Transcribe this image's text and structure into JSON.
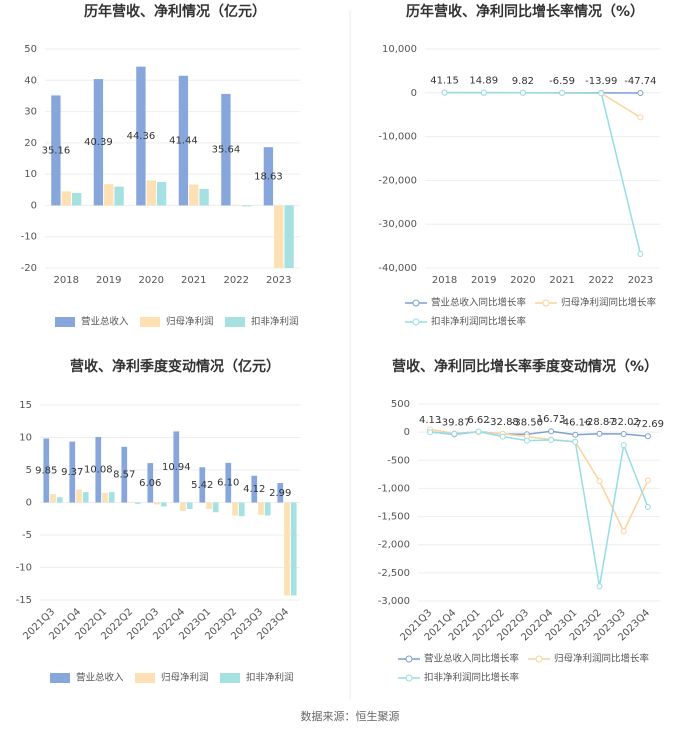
{
  "chart_data": [
    {
      "type": "bar",
      "title": "历年营收、净利情况（亿元）",
      "categories": [
        "2018",
        "2019",
        "2020",
        "2021",
        "2022",
        "2023"
      ],
      "series": [
        {
          "name": "营业总收入",
          "color": "#87a7dc",
          "values": [
            35.16,
            40.39,
            44.36,
            41.44,
            35.64,
            18.63
          ],
          "value_labels": [
            "35.16",
            "40.39",
            "44.36",
            "41.44",
            "35.64",
            "18.63"
          ]
        },
        {
          "name": "归母净利润",
          "color": "#fde1b4",
          "values": [
            4.5,
            6.8,
            8.0,
            6.7,
            0.2,
            -20
          ]
        },
        {
          "name": "扣非净利润",
          "color": "#a6e1e2",
          "values": [
            4.0,
            6.0,
            7.5,
            5.3,
            -0.3,
            -20
          ]
        }
      ],
      "ylim": [
        -20,
        50
      ],
      "yticks": [
        -20,
        -10,
        0,
        10,
        20,
        30,
        40,
        50
      ],
      "grid": true
    },
    {
      "type": "line",
      "title": "历年营收、净利同比增长率情况（%）",
      "categories": [
        "2018",
        "2019",
        "2020",
        "2021",
        "2022",
        "2023"
      ],
      "series": [
        {
          "name": "营业总收入同比增长率",
          "color": "#7e9fd2",
          "values": [
            41.15,
            14.89,
            9.82,
            -6.59,
            -13.99,
            -47.74
          ],
          "value_labels": [
            "41.15",
            "14.89",
            "9.82",
            "-6.59",
            "-13.99",
            "-47.74"
          ]
        },
        {
          "name": "归母净利润同比增长率",
          "color": "#fbd49c",
          "values": [
            40,
            60,
            20,
            -10,
            -95,
            -5600
          ]
        },
        {
          "name": "扣非净利润同比增长率",
          "color": "#96dde5",
          "values": [
            35,
            50,
            25,
            -30,
            -104,
            -36800
          ]
        }
      ],
      "ylim": [
        -40000,
        10000
      ],
      "yticks": [
        {
          "value": -40000,
          "label": "-40,000"
        },
        {
          "value": -30000,
          "label": "-30,000"
        },
        {
          "value": -20000,
          "label": "-20,000"
        },
        {
          "value": -10000,
          "label": "-10,000"
        },
        0,
        {
          "value": 10000,
          "label": "10,000"
        }
      ],
      "grid": true
    },
    {
      "type": "bar",
      "title": "营收、净利季度变动情况（亿元）",
      "categories": [
        "2021Q3",
        "2021Q4",
        "2022Q1",
        "2022Q2",
        "2022Q3",
        "2022Q4",
        "2023Q1",
        "2023Q2",
        "2023Q3",
        "2023Q4"
      ],
      "series": [
        {
          "name": "营业总收入",
          "color": "#87a7dc",
          "values": [
            9.85,
            9.37,
            10.08,
            8.57,
            6.06,
            10.94,
            5.42,
            6.1,
            4.12,
            2.99
          ],
          "value_labels": [
            "9.85",
            "9.37",
            "10.08",
            "8.57",
            "6.06",
            "10.94",
            "5.42",
            "6.10",
            "4.12",
            "2.99"
          ]
        },
        {
          "name": "归母净利润",
          "color": "#fde1b4",
          "values": [
            1.3,
            2.0,
            1.5,
            0.1,
            -0.3,
            -1.3,
            -1.0,
            -2.0,
            -1.9,
            -14.3
          ]
        },
        {
          "name": "扣非净利润",
          "color": "#a6e1e2",
          "values": [
            0.8,
            1.6,
            1.6,
            -0.2,
            -0.6,
            -1.0,
            -1.5,
            -2.1,
            -2.0,
            -14.3
          ]
        }
      ],
      "ylim": [
        -15,
        15
      ],
      "yticks": [
        -15,
        -10,
        -5,
        0,
        5,
        10,
        15
      ],
      "grid": true
    },
    {
      "type": "line",
      "title": "营收、净利同比增长率季度变动情况（%）",
      "categories": [
        "2021Q3",
        "2021Q4",
        "2022Q1",
        "2022Q2",
        "2022Q3",
        "2022Q4",
        "2023Q1",
        "2023Q2",
        "2023Q3",
        "2023Q4"
      ],
      "series": [
        {
          "name": "营业总收入同比增长率",
          "color": "#7e9fd2",
          "values": [
            4.13,
            -39.87,
            6.62,
            -32.88,
            -38.5,
            16.73,
            -46.16,
            -28.87,
            -32.02,
            -72.69
          ],
          "value_labels": [
            "4.13",
            "-39.87",
            "6.62",
            "-32.88",
            "-38.50",
            "16.73",
            "-46.16",
            "-28.87",
            "-32.02",
            "-72.69"
          ]
        },
        {
          "name": "归母净利润同比增长率",
          "color": "#fbd49c",
          "values": [
            50,
            -20,
            0,
            -30,
            -80,
            -130,
            -170,
            -870,
            -1760,
            -860
          ]
        },
        {
          "name": "扣非净利润同比增长率",
          "color": "#96dde5",
          "values": [
            0,
            -30,
            10,
            -80,
            -150,
            -140,
            -170,
            -2740,
            -230,
            -1330
          ]
        }
      ],
      "ylim": [
        -3000,
        500
      ],
      "yticks": [
        {
          "value": -3000,
          "label": "-3,000"
        },
        {
          "value": -2500,
          "label": "-2,500"
        },
        {
          "value": -2000,
          "label": "-2,000"
        },
        {
          "value": -1500,
          "label": "-1,500"
        },
        {
          "value": -1000,
          "label": "-1,000"
        },
        -500,
        0,
        500
      ],
      "grid": true
    }
  ],
  "source": "数据来源：恒生聚源"
}
